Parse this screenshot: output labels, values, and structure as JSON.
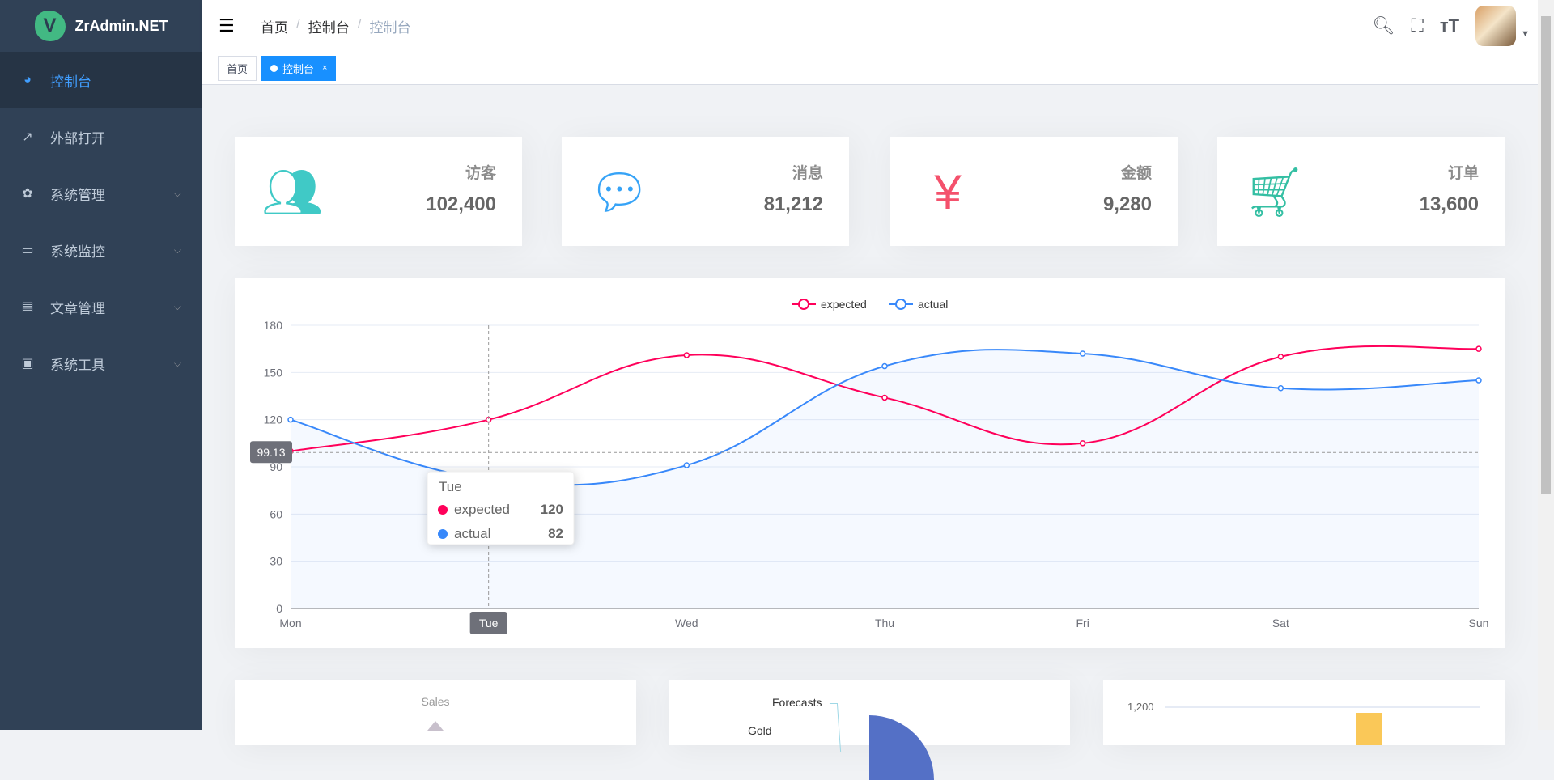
{
  "sidebar": {
    "logo_text": "ZrAdmin.NET",
    "logo_letter": "V",
    "items": [
      {
        "label": "控制台",
        "icon": "dashboard-icon",
        "active": true
      },
      {
        "label": "外部打开",
        "icon": "external-link-icon"
      },
      {
        "label": "系统管理",
        "icon": "gear-icon",
        "expandable": true
      },
      {
        "label": "系统监控",
        "icon": "monitor-icon",
        "expandable": true
      },
      {
        "label": "文章管理",
        "icon": "document-icon",
        "expandable": true
      },
      {
        "label": "系统工具",
        "icon": "toolbox-icon",
        "expandable": true
      }
    ]
  },
  "navbar": {
    "breadcrumb": [
      "首页",
      "控制台",
      "控制台"
    ],
    "icons": [
      "search-icon",
      "fullscreen-icon",
      "font-size-icon",
      "avatar",
      "caret-down-icon"
    ]
  },
  "tags": [
    {
      "label": "首页"
    },
    {
      "label": "控制台",
      "active": true
    }
  ],
  "stats": [
    {
      "label": "访客",
      "value": "102,400",
      "color": "#40c9c6",
      "icon": "people-icon"
    },
    {
      "label": "消息",
      "value": "81,212",
      "color": "#36a3f7",
      "icon": "message-icon"
    },
    {
      "label": "金额",
      "value": "9,280",
      "color": "#f4516c",
      "icon": "yen-icon"
    },
    {
      "label": "订单",
      "value": "13,600",
      "color": "#34bfa3",
      "icon": "shopping-cart-icon"
    }
  ],
  "chart_data": {
    "type": "line",
    "categories": [
      "Mon",
      "Tue",
      "Wed",
      "Thu",
      "Fri",
      "Sat",
      "Sun"
    ],
    "series": [
      {
        "name": "expected",
        "values": [
          100,
          120,
          161,
          134,
          105,
          160,
          165
        ],
        "color": "#FF005A"
      },
      {
        "name": "actual",
        "values": [
          120,
          82,
          91,
          154,
          162,
          140,
          145
        ],
        "color": "#3888fa"
      }
    ],
    "ylim": [
      0,
      180
    ],
    "yticks": [
      0,
      30,
      60,
      90,
      120,
      150,
      180
    ],
    "legend": "top-center",
    "grid": true,
    "pointer": {
      "category": "Tue",
      "y_value": "99.13"
    },
    "tooltip": {
      "title": "Tue",
      "rows": [
        {
          "name": "expected",
          "value": "120"
        },
        {
          "name": "actual",
          "value": "82"
        }
      ]
    }
  },
  "bottom": {
    "radar_title": "Sales",
    "pie_labels": [
      "Forecasts",
      "Gold"
    ],
    "bar_axis_top": "1,200"
  }
}
